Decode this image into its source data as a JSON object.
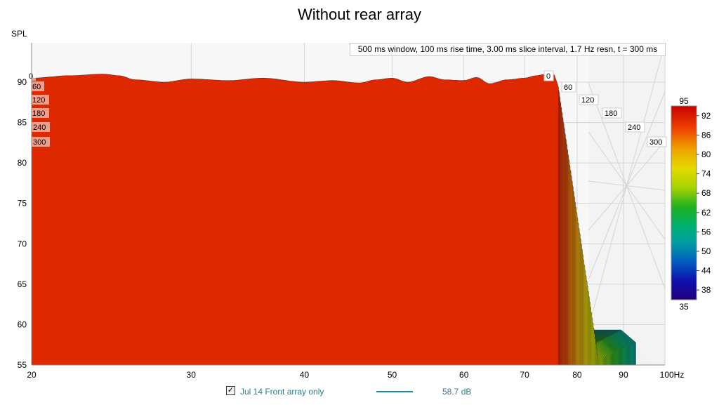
{
  "chart_data": {
    "type": "waterfall",
    "title": "Without rear array",
    "ylabel": "SPL",
    "xlabel": "",
    "x_scale": "log",
    "xlim": [
      20,
      100
    ],
    "ylim": [
      55,
      95
    ],
    "x_ticks": [
      "20",
      "30",
      "40",
      "50",
      "60",
      "70",
      "80",
      "90",
      "100Hz"
    ],
    "y_ticks": [
      "55",
      "60",
      "65",
      "70",
      "75",
      "80",
      "85",
      "90"
    ],
    "settings": "500 ms window, 100 ms rise time, 3.00 ms slice interval, 1.7 Hz resn, t = 300 ms",
    "slice_labels": [
      "0",
      "60",
      "120",
      "180",
      "240",
      "300"
    ],
    "colorbar": {
      "max": "95",
      "min": "35",
      "ticks": [
        "92",
        "86",
        "80",
        "74",
        "68",
        "62",
        "56",
        "50",
        "44",
        "38"
      ]
    },
    "legend": {
      "checked": true,
      "name": "Jul 14 Front array only",
      "value": "58.7 dB"
    },
    "front_slice": {
      "freq_hz": [
        20,
        22,
        24,
        25,
        26,
        28,
        30,
        33,
        36,
        40,
        43,
        46,
        48,
        50,
        52,
        55,
        57,
        60,
        62,
        64,
        67,
        70,
        72,
        74,
        75
      ],
      "spl_db": [
        90.5,
        90.8,
        91.0,
        90.8,
        90.3,
        90.0,
        90.4,
        90.2,
        90.5,
        90.0,
        90.2,
        89.9,
        90.3,
        90.5,
        90.0,
        90.7,
        90.3,
        90.2,
        90.6,
        89.8,
        90.3,
        90.5,
        90.8,
        91.0,
        90.9
      ]
    }
  }
}
